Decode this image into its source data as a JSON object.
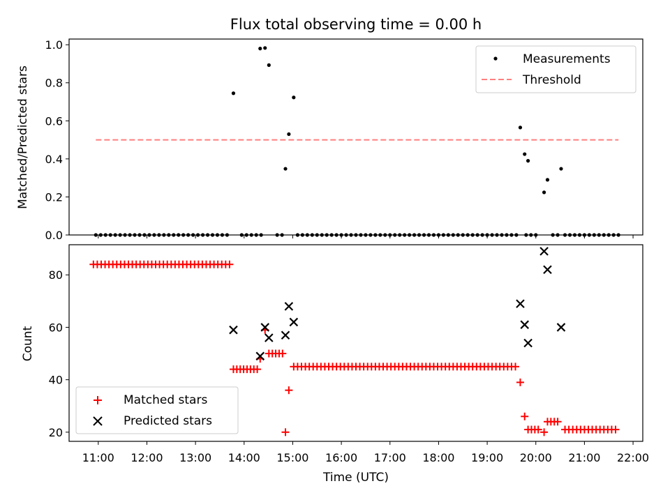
{
  "chart_data": [
    {
      "type": "scatter",
      "title": "Flux total observing time = 0.00 h",
      "xlabel": "",
      "ylabel": "Matched/Predicted stars",
      "xlim": [
        10.4,
        22.2
      ],
      "ylim": [
        0.0,
        1.03
      ],
      "yticks": [
        0.0,
        0.2,
        0.4,
        0.6,
        0.8,
        1.0
      ],
      "ytick_labels": [
        "0.0",
        "0.2",
        "0.4",
        "0.6",
        "0.8",
        "1.0"
      ],
      "grid": false,
      "legend_position": "top-right",
      "series": [
        {
          "name": "Measurements",
          "kind": "scatter",
          "color": "#000000",
          "zero_runs": [
            [
              10.95,
              13.72,
              0.1
            ],
            [
              13.95,
              14.35,
              0.1
            ],
            [
              14.68,
              14.8,
              0.1
            ],
            [
              15.1,
              19.6,
              0.1
            ],
            [
              19.8,
              20.0,
              0.1
            ],
            [
              20.35,
              20.45,
              0.1
            ],
            [
              20.6,
              21.7,
              0.1
            ]
          ],
          "points": [
            {
              "x": 13.78,
              "y": 0.745
            },
            {
              "x": 14.33,
              "y": 0.98
            },
            {
              "x": 14.43,
              "y": 0.983
            },
            {
              "x": 14.51,
              "y": 0.893
            },
            {
              "x": 14.85,
              "y": 0.348
            },
            {
              "x": 14.92,
              "y": 0.53
            },
            {
              "x": 15.02,
              "y": 0.723
            },
            {
              "x": 19.68,
              "y": 0.565
            },
            {
              "x": 19.77,
              "y": 0.425
            },
            {
              "x": 19.84,
              "y": 0.39
            },
            {
              "x": 20.17,
              "y": 0.224
            },
            {
              "x": 20.24,
              "y": 0.29
            },
            {
              "x": 20.52,
              "y": 0.348
            }
          ]
        },
        {
          "name": "Threshold",
          "kind": "line",
          "color": "#ff7f7f",
          "x": [
            10.95,
            21.7
          ],
          "y": [
            0.5,
            0.5
          ]
        }
      ]
    },
    {
      "type": "scatter",
      "title": "",
      "xlabel": "Time (UTC)",
      "ylabel": "Count",
      "xlim": [
        10.4,
        22.2
      ],
      "ylim": [
        16.5,
        91.5
      ],
      "yticks": [
        20,
        40,
        60,
        80
      ],
      "ytick_labels": [
        "20",
        "40",
        "60",
        "80"
      ],
      "xticks": [
        11,
        12,
        13,
        14,
        15,
        16,
        17,
        18,
        19,
        20,
        21,
        22
      ],
      "xtick_labels": [
        "11:00",
        "12:00",
        "13:00",
        "14:00",
        "15:00",
        "16:00",
        "17:00",
        "18:00",
        "19:00",
        "20:00",
        "21:00",
        "22:00"
      ],
      "grid": false,
      "legend_position": "bottom-left",
      "series": [
        {
          "name": "Matched stars",
          "marker": "plus",
          "color": "#ff0000",
          "runs": [
            [
              10.9,
              13.72,
              84,
              0.08
            ],
            [
              13.78,
              14.33,
              44,
              0.07
            ],
            [
              14.51,
              14.85,
              50,
              0.07
            ],
            [
              15.02,
              19.62,
              45,
              0.08
            ],
            [
              19.84,
              20.1,
              21,
              0.07
            ],
            [
              20.24,
              20.47,
              24,
              0.07
            ],
            [
              20.6,
              21.7,
              21,
              0.08
            ]
          ],
          "points": [
            {
              "x": 14.33,
              "y": 48
            },
            {
              "x": 14.43,
              "y": 59
            },
            {
              "x": 14.85,
              "y": 20
            },
            {
              "x": 14.92,
              "y": 36
            },
            {
              "x": 19.68,
              "y": 39
            },
            {
              "x": 19.77,
              "y": 26
            },
            {
              "x": 20.17,
              "y": 20
            }
          ]
        },
        {
          "name": "Predicted stars",
          "marker": "x",
          "color": "#000000",
          "points": [
            {
              "x": 13.78,
              "y": 59
            },
            {
              "x": 14.33,
              "y": 49
            },
            {
              "x": 14.43,
              "y": 60
            },
            {
              "x": 14.51,
              "y": 56
            },
            {
              "x": 14.85,
              "y": 57
            },
            {
              "x": 14.92,
              "y": 68
            },
            {
              "x": 15.02,
              "y": 62
            },
            {
              "x": 19.68,
              "y": 69
            },
            {
              "x": 19.77,
              "y": 61
            },
            {
              "x": 19.84,
              "y": 54
            },
            {
              "x": 20.17,
              "y": 89
            },
            {
              "x": 20.24,
              "y": 82
            },
            {
              "x": 20.52,
              "y": 60
            }
          ]
        }
      ]
    }
  ]
}
